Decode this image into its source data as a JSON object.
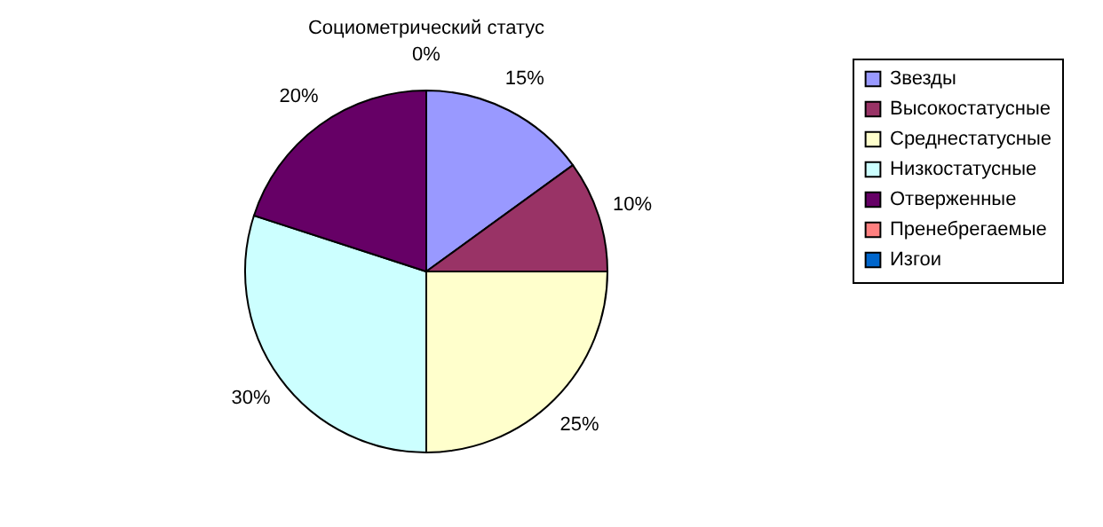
{
  "chart_data": {
    "type": "pie",
    "title": "Социометрический статус",
    "categories": [
      "Звезды",
      "Высокостатусные",
      "Среднестатусные",
      "Низкостатусные",
      "Отверженные",
      "Пренебрегаемые",
      "Изгои"
    ],
    "values": [
      15,
      10,
      25,
      30,
      20,
      0,
      0
    ],
    "colors": [
      "#9999ff",
      "#993366",
      "#ffffcc",
      "#ccffff",
      "#660066",
      "#ff8080",
      "#0066cc"
    ],
    "value_labels": [
      "15%",
      "10%",
      "25%",
      "30%",
      "20%",
      "0%",
      null
    ],
    "legend": "right"
  }
}
